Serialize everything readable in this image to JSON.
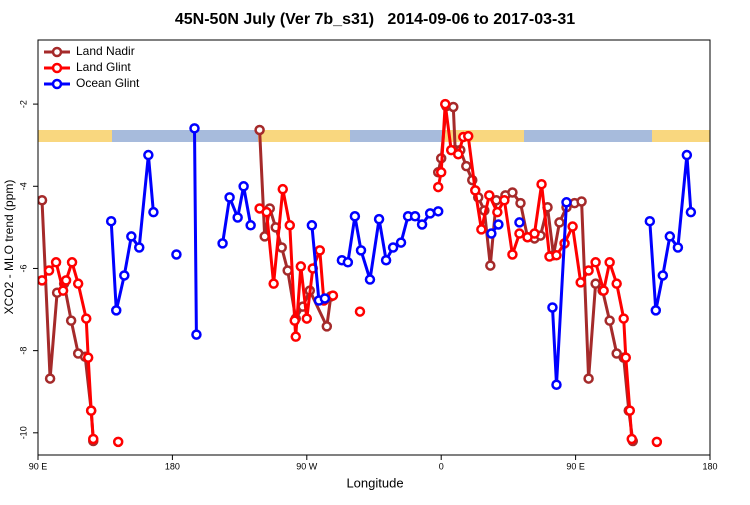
{
  "chart_data": {
    "type": "line",
    "title": "45N-50N July (Ver 7b_s31)   2014-09-06 to 2017-03-31",
    "x_label": "Longitude",
    "y_label": "XCO2 - MLO trend (ppm)",
    "xlim": [
      -270,
      180
    ],
    "xticks": [
      {
        "value": -270,
        "label": "90 E"
      },
      {
        "value": -180,
        "label": "180"
      },
      {
        "value": -90,
        "label": "90 W"
      },
      0,
      {
        "value": 90,
        "label": "90 E"
      },
      180
    ],
    "ylim": [
      -10.54,
      -0.44
    ],
    "yticks": [
      -10,
      -8,
      -6,
      -4,
      -2
    ],
    "legend": "top-left",
    "series": [
      {
        "name": "Land Nadir",
        "color": "#a52a2a",
        "x": [
          -267.3,
          -261.9,
          -257.2,
          -252.5,
          -247.8,
          -243.1,
          -238.4,
          -234.4,
          -233.0,
          null,
          -121.6,
          -118.2,
          -114.8,
          -110.8,
          -106.8,
          -102.8,
          -97.4,
          -92.7,
          -88.0,
          -76.6,
          -73.9,
          null,
          -2.0,
          0,
          3.4,
          8.1,
          9.4,
          12.8,
          16.8,
          20.8,
          24.8,
          28.9,
          32.9,
          36.9,
          43.0,
          47.7,
          53.1,
          57.8,
          62.5,
          66.5,
          71.2,
          75.2,
          79.2,
          83.9,
          89.3,
          94.0,
          98.7,
          103.4,
          108.1,
          112.8,
          117.5,
          122.2,
          125.6,
          128.3
        ],
        "values": [
          -4.34,
          -8.68,
          -6.59,
          -6.37,
          -7.27,
          -8.07,
          -8.15,
          -9.46,
          -10.2,
          null,
          -2.63,
          -5.22,
          -4.54,
          -5.0,
          -5.49,
          -6.05,
          -7.22,
          -6.93,
          -6.54,
          -7.41,
          -6.68,
          null,
          -3.66,
          -3.32,
          -2.05,
          -2.07,
          -3.12,
          -3.12,
          -3.51,
          -3.85,
          -4.27,
          -4.59,
          -5.93,
          -4.34,
          -4.22,
          -4.15,
          -4.41,
          -5.24,
          -5.27,
          -5.2,
          -4.51,
          -5.68,
          -4.88,
          -4.51,
          -4.41,
          -4.37,
          -8.68,
          -6.37,
          -6.54,
          -7.27,
          -8.07,
          -8.17,
          -9.46,
          -10.2
        ]
      },
      {
        "name": "Land Glint",
        "color": "#ff0000",
        "x": [
          -267.3,
          -262.6,
          -257.9,
          -253.2,
          -251.2,
          -247.2,
          -243.1,
          -237.7,
          -236.4,
          -234.4,
          -233.0,
          null,
          -216.3,
          null,
          -121.6,
          -116.9,
          -112.2,
          -106.1,
          -101.4,
          -98.1,
          -97.4,
          -94.0,
          -90.0,
          -86.0,
          -81.3,
          -78.6,
          -72.5,
          null,
          -54.4,
          null,
          -2.0,
          0,
          2.7,
          6.7,
          11.4,
          14.8,
          18.1,
          22.8,
          26.9,
          32.2,
          37.6,
          42.3,
          47.7,
          52.4,
          57.8,
          62.5,
          67.2,
          72.5,
          77.2,
          82.6,
          88.0,
          93.4,
          98.7,
          103.4,
          108.8,
          112.8,
          117.5,
          122.2,
          123.6,
          126.3,
          127.6,
          null,
          144.4
        ],
        "values": [
          -6.29,
          -6.05,
          -5.85,
          -6.54,
          -6.29,
          -5.85,
          -6.37,
          -7.22,
          -8.17,
          -9.46,
          -10.15,
          null,
          -10.22,
          null,
          -4.54,
          -4.63,
          -6.37,
          -4.07,
          -4.95,
          -7.27,
          -7.66,
          -5.95,
          -7.22,
          -6.0,
          -5.56,
          -6.78,
          -6.66,
          null,
          -7.05,
          null,
          -4.02,
          -3.66,
          -2.0,
          -3.12,
          -3.22,
          -2.8,
          -2.78,
          -4.1,
          -5.05,
          -4.22,
          -4.63,
          -4.34,
          -5.66,
          -5.15,
          -5.24,
          -5.15,
          -3.95,
          -5.71,
          -5.68,
          -5.39,
          -4.98,
          -6.34,
          -6.05,
          -5.85,
          -6.54,
          -5.85,
          -6.37,
          -7.22,
          -8.17,
          -9.46,
          -10.15,
          null,
          -10.22
        ]
      },
      {
        "name": "Ocean Glint",
        "color": "#0000ff",
        "x": [
          -221,
          -217.6,
          -212.2,
          -207.5,
          -202.2,
          -196.1,
          -192.7,
          null,
          -177.3,
          null,
          -165.2,
          -163.9,
          null,
          -146.4,
          -141.7,
          -136.3,
          -132.3,
          -127.6,
          null,
          -86.6,
          -81.9,
          -77.9,
          null,
          -66.5,
          -62.5,
          -57.8,
          -53.7,
          -47.7,
          -41.6,
          -36.9,
          -32.2,
          -26.9,
          -22.2,
          -17.5,
          -12.8,
          -7.4,
          -2.0,
          null,
          33.6,
          38.3,
          null,
          52.4,
          null,
          74.5,
          77.2,
          83.9,
          null,
          139.7,
          143.7,
          148.4,
          153.1,
          158.5,
          164.5,
          167.2
        ],
        "values": [
          -4.85,
          -7.02,
          -6.17,
          -5.22,
          -5.49,
          -3.24,
          -4.63,
          null,
          -5.66,
          null,
          -2.59,
          -7.61,
          null,
          -5.39,
          -4.27,
          -4.76,
          -4.0,
          -4.95,
          null,
          -4.95,
          -6.78,
          -6.73,
          null,
          -5.8,
          -5.85,
          -4.73,
          -5.56,
          -6.27,
          -4.8,
          -5.8,
          -5.49,
          -5.37,
          -4.73,
          -4.73,
          -4.93,
          -4.66,
          -4.61,
          null,
          -5.15,
          -4.93,
          null,
          -4.88,
          null,
          -6.95,
          -8.83,
          -4.39,
          null,
          -4.85,
          -7.02,
          -6.17,
          -5.22,
          -5.49,
          -3.24,
          -4.63
        ]
      }
    ]
  }
}
